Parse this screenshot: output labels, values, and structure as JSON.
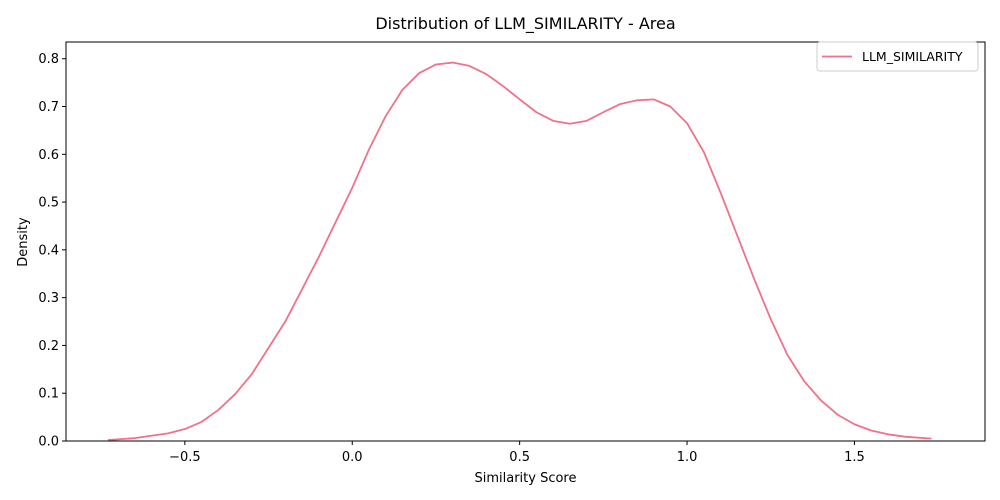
{
  "chart_data": {
    "type": "line",
    "title": "Distribution of LLM_SIMILARITY - Area",
    "xlabel": "Similarity Score",
    "ylabel": "Density",
    "xlim": [
      -0.855,
      1.89
    ],
    "ylim": [
      0,
      0.835
    ],
    "x_ticks": [
      -0.5,
      0.0,
      0.5,
      1.0,
      1.5
    ],
    "x_tick_labels": [
      "−0.5",
      "0.0",
      "0.5",
      "1.0",
      "1.5"
    ],
    "y_ticks": [
      0.0,
      0.1,
      0.2,
      0.3,
      0.4,
      0.5,
      0.6,
      0.7,
      0.8
    ],
    "y_tick_labels": [
      "0.0",
      "0.1",
      "0.2",
      "0.3",
      "0.4",
      "0.5",
      "0.6",
      "0.7",
      "0.8"
    ],
    "grid": false,
    "legend_position": "top-right",
    "series": [
      {
        "name": "LLM_SIMILARITY",
        "color": "#f0728a",
        "x": [
          -0.73,
          -0.65,
          -0.55,
          -0.5,
          -0.45,
          -0.4,
          -0.35,
          -0.3,
          -0.2,
          -0.1,
          0.0,
          0.05,
          0.1,
          0.15,
          0.2,
          0.25,
          0.3,
          0.35,
          0.4,
          0.45,
          0.5,
          0.55,
          0.6,
          0.65,
          0.7,
          0.75,
          0.8,
          0.85,
          0.9,
          0.95,
          1.0,
          1.05,
          1.1,
          1.15,
          1.2,
          1.25,
          1.3,
          1.35,
          1.4,
          1.45,
          1.5,
          1.55,
          1.6,
          1.65,
          1.73
        ],
        "y": [
          0.002,
          0.006,
          0.016,
          0.025,
          0.04,
          0.065,
          0.098,
          0.14,
          0.25,
          0.385,
          0.53,
          0.61,
          0.68,
          0.735,
          0.77,
          0.788,
          0.792,
          0.785,
          0.768,
          0.743,
          0.715,
          0.688,
          0.67,
          0.664,
          0.67,
          0.688,
          0.705,
          0.713,
          0.715,
          0.7,
          0.665,
          0.605,
          0.52,
          0.43,
          0.34,
          0.255,
          0.18,
          0.125,
          0.085,
          0.055,
          0.035,
          0.022,
          0.014,
          0.009,
          0.005
        ]
      }
    ]
  }
}
